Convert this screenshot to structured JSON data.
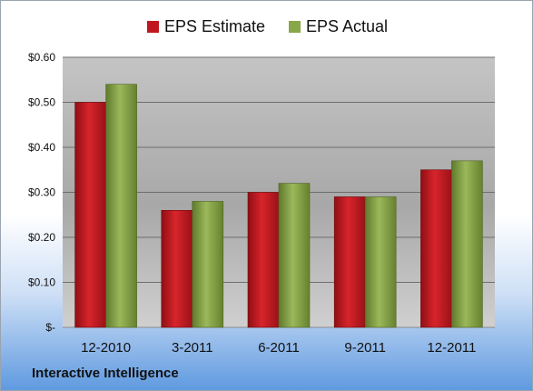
{
  "chart_data": {
    "type": "bar",
    "categories": [
      "12-2010",
      "3-2011",
      "6-2011",
      "9-2011",
      "12-2011"
    ],
    "series": [
      {
        "name": "EPS Estimate",
        "values": [
          0.5,
          0.26,
          0.3,
          0.29,
          0.35
        ],
        "color": "#c0161d"
      },
      {
        "name": "EPS Actual",
        "values": [
          0.54,
          0.28,
          0.32,
          0.29,
          0.37
        ],
        "color": "#8aa64a"
      }
    ],
    "ylim": [
      0,
      0.6
    ],
    "yticks": [
      0,
      0.1,
      0.2,
      0.3,
      0.4,
      0.5,
      0.6
    ],
    "ytick_labels": [
      "$-",
      "$0.10",
      "$0.20",
      "$0.30",
      "$0.40",
      "$0.50",
      "$0.60"
    ],
    "grid": true,
    "legend_position": "top"
  },
  "footer": {
    "brand": "Interactive Intelligence"
  }
}
